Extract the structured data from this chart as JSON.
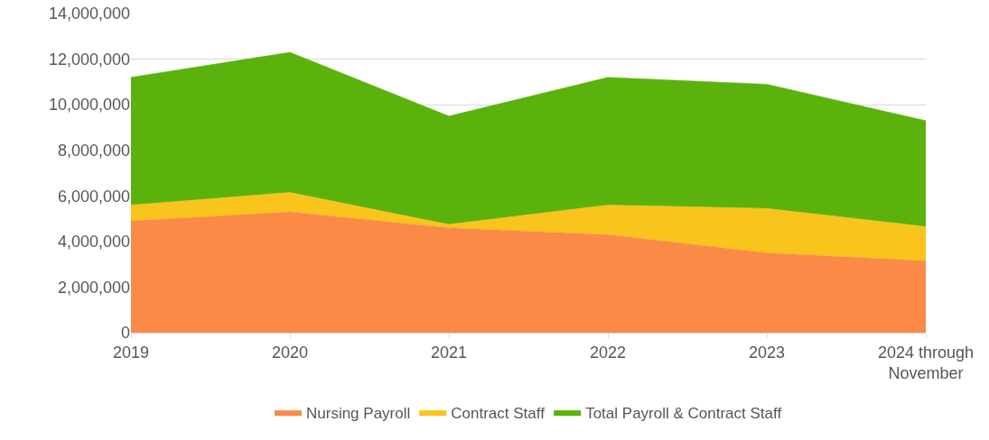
{
  "chart_data": {
    "type": "area",
    "stacked": true,
    "categories": [
      "2019",
      "2020",
      "2021",
      "2022",
      "2023",
      "2024 through November"
    ],
    "series": [
      {
        "name": "Nursing Payroll",
        "color": "#fa8a46",
        "values": [
          4900000,
          5300000,
          4600000,
          4300000,
          3500000,
          3150000
        ]
      },
      {
        "name": "Contract Staff",
        "color": "#f9c41c",
        "values": [
          700000,
          850000,
          150000,
          1300000,
          1950000,
          1500000
        ]
      },
      {
        "name": "Total Payroll & Contract Staff",
        "color": "#5bb20c",
        "values": [
          5600000,
          6150000,
          4750000,
          5600000,
          5450000,
          4650000
        ]
      }
    ],
    "ylim": [
      0,
      14000000
    ],
    "yticks": [
      {
        "value": 0,
        "label": "0"
      },
      {
        "value": 2000000,
        "label": "2,000,000"
      },
      {
        "value": 4000000,
        "label": "4,000,000"
      },
      {
        "value": 6000000,
        "label": "6,000,000"
      },
      {
        "value": 8000000,
        "label": "8,000,000"
      },
      {
        "value": 10000000,
        "label": "10,000,000"
      },
      {
        "value": 12000000,
        "label": "12,000,000"
      },
      {
        "value": 14000000,
        "label": "14,000,000"
      }
    ],
    "grid": "y",
    "legend": "bottom"
  }
}
